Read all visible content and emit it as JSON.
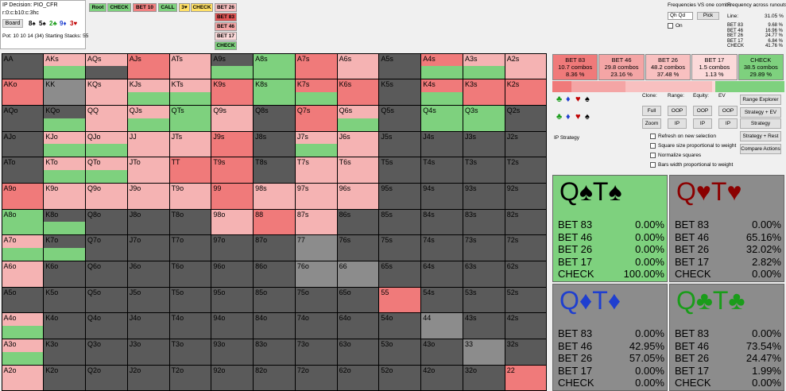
{
  "info": {
    "decision": "IP Decision: PIO_CFR",
    "line": "r:0:c:b10:c:3hc",
    "board_button": "Board",
    "board": [
      {
        "card": "8♠",
        "color": "#000000"
      },
      {
        "card": "5♠",
        "color": "#000000"
      },
      {
        "card": "2♣",
        "color": "#1a9c1a"
      },
      {
        "card": "9♦",
        "color": "#1f3fcf"
      },
      {
        "card": "3♥",
        "color": "#c00000"
      }
    ],
    "pot": "Pot: 10 10 14 (34) Starting Stacks: 55"
  },
  "tree": {
    "path": [
      {
        "label": "Root",
        "color": "#7ed17e"
      },
      {
        "label": "CHECK",
        "color": "#7ed17e"
      },
      {
        "label": "BET 10",
        "color": "#f08080"
      },
      {
        "label": "CALL",
        "color": "#7ed17e"
      },
      {
        "label": "3♥",
        "color": "#ffe066"
      },
      {
        "label": "CHECK",
        "color": "#ffe066"
      }
    ],
    "children": [
      {
        "label": "BET 26",
        "color": "#f8c0c0"
      },
      {
        "label": "BET 83",
        "color": "#e05555"
      },
      {
        "label": "BET 46",
        "color": "#f4a5a5"
      },
      {
        "label": "BET 17",
        "color": "#fbd9d9"
      },
      {
        "label": "CHECK",
        "color": "#7ed17e"
      }
    ]
  },
  "combo": {
    "title": "Frequencies VS one combo",
    "input": "Qh Qd",
    "button": "Pick",
    "checkbox": "On"
  },
  "runouts": {
    "title": "Frequency across runouts:",
    "line_label": "Line:",
    "line_value": "31.05 %",
    "rows": [
      [
        "BET 83",
        "9.68 %"
      ],
      [
        "BET 46",
        "16.96 %"
      ],
      [
        "BET 26",
        "24.77 %"
      ],
      [
        "BET 17",
        "6.84 %"
      ],
      [
        "CHECK",
        "41.76 %"
      ]
    ]
  },
  "grid": {
    "palette": {
      "D": "#5a5a5a",
      "L": "#8c8c8c",
      "R": "#f07a7a",
      "P": "#f5b3b3",
      "G": "#7ed17e"
    },
    "rows": [
      [
        "AA",
        "AKs",
        "AQs",
        "AJs",
        "ATs",
        "A9s",
        "A8s",
        "A7s",
        "A6s",
        "A5s",
        "A4s",
        "A3s",
        "A2s"
      ],
      [
        "AKo",
        "KK",
        "KQs",
        "KJs",
        "KTs",
        "K9s",
        "K8s",
        "K7s",
        "K6s",
        "K5s",
        "K4s",
        "K3s",
        "K2s"
      ],
      [
        "AQo",
        "KQo",
        "QQ",
        "QJs",
        "QTs",
        "Q9s",
        "Q8s",
        "Q7s",
        "Q6s",
        "Q5s",
        "Q4s",
        "Q3s",
        "Q2s"
      ],
      [
        "AJo",
        "KJo",
        "QJo",
        "JJ",
        "JTs",
        "J9s",
        "J8s",
        "J7s",
        "J6s",
        "J5s",
        "J4s",
        "J3s",
        "J2s"
      ],
      [
        "ATo",
        "KTo",
        "QTo",
        "JTo",
        "TT",
        "T9s",
        "T8s",
        "T7s",
        "T6s",
        "T5s",
        "T4s",
        "T3s",
        "T2s"
      ],
      [
        "A9o",
        "K9o",
        "Q9o",
        "J9o",
        "T9o",
        "99",
        "98s",
        "97s",
        "96s",
        "95s",
        "94s",
        "93s",
        "92s"
      ],
      [
        "A8o",
        "K8o",
        "Q8o",
        "J8o",
        "T8o",
        "98o",
        "88",
        "87s",
        "86s",
        "85s",
        "84s",
        "83s",
        "82s"
      ],
      [
        "A7o",
        "K7o",
        "Q7o",
        "J7o",
        "T7o",
        "97o",
        "87o",
        "77",
        "76s",
        "75s",
        "74s",
        "73s",
        "72s"
      ],
      [
        "A6o",
        "K6o",
        "Q6o",
        "J6o",
        "T6o",
        "96o",
        "86o",
        "76o",
        "66",
        "65s",
        "64s",
        "63s",
        "62s"
      ],
      [
        "A5o",
        "K5o",
        "Q5o",
        "J5o",
        "T5o",
        "95o",
        "85o",
        "75o",
        "65o",
        "55",
        "54s",
        "53s",
        "52s"
      ],
      [
        "A4o",
        "K4o",
        "Q4o",
        "J4o",
        "T4o",
        "94o",
        "84o",
        "74o",
        "64o",
        "54o",
        "44",
        "43s",
        "42s"
      ],
      [
        "A3o",
        "K3o",
        "Q3o",
        "J3o",
        "T3o",
        "93o",
        "83o",
        "73o",
        "63o",
        "53o",
        "43o",
        "33",
        "32s"
      ],
      [
        "A2o",
        "K2o",
        "Q2o",
        "J2o",
        "T2o",
        "92o",
        "82o",
        "72o",
        "62o",
        "52o",
        "42o",
        "32o",
        "22"
      ]
    ],
    "fills": [
      [
        "D",
        "PG",
        "PD",
        "R",
        "P",
        "DG",
        "G",
        "R",
        "P",
        "D",
        "RG",
        "PG",
        "P"
      ],
      [
        "R",
        "L",
        "P",
        "PG",
        "PG",
        "R",
        "G",
        "RG",
        "R",
        "D",
        "RG",
        "R",
        "R"
      ],
      [
        "D",
        "DG",
        "P",
        "PG",
        "G",
        "P",
        "D",
        "R",
        "PG",
        "D",
        "G",
        "G",
        "D"
      ],
      [
        "D",
        "PG",
        "PG",
        "P",
        "P",
        "R",
        "D",
        "PG",
        "P",
        "D",
        "D",
        "D",
        "D"
      ],
      [
        "D",
        "PG",
        "PG",
        "P",
        "R",
        "R",
        "D",
        "P",
        "P",
        "D",
        "D",
        "D",
        "D"
      ],
      [
        "R",
        "P",
        "P",
        "P",
        "P",
        "R",
        "P",
        "P",
        "P",
        "D",
        "D",
        "D",
        "D"
      ],
      [
        "G",
        "DG",
        "D",
        "D",
        "D",
        "P",
        "R",
        "P",
        "D",
        "D",
        "D",
        "D",
        "D"
      ],
      [
        "PG",
        "DG",
        "D",
        "D",
        "D",
        "D",
        "D",
        "L",
        "D",
        "D",
        "D",
        "D",
        "D"
      ],
      [
        "P",
        "D",
        "D",
        "D",
        "D",
        "D",
        "D",
        "L",
        "L",
        "D",
        "D",
        "D",
        "D"
      ],
      [
        "D",
        "D",
        "D",
        "D",
        "D",
        "D",
        "D",
        "D",
        "D",
        "R",
        "D",
        "D",
        "D"
      ],
      [
        "PG",
        "D",
        "D",
        "D",
        "D",
        "D",
        "D",
        "D",
        "D",
        "D",
        "L",
        "D",
        "D"
      ],
      [
        "PG",
        "D",
        "D",
        "D",
        "D",
        "D",
        "D",
        "D",
        "D",
        "D",
        "D",
        "L",
        "D"
      ],
      [
        "P",
        "D",
        "D",
        "D",
        "D",
        "D",
        "D",
        "D",
        "D",
        "D",
        "D",
        "D",
        "R"
      ]
    ]
  },
  "actions": [
    {
      "name": "BET 83",
      "combos": "10.7 combos",
      "value": 8.36,
      "value_label": "8.36 %",
      "color": "#f07a7a"
    },
    {
      "name": "BET 46",
      "combos": "29.8 combos",
      "value": 23.16,
      "value_label": "23.16 %",
      "color": "#f4a5a5"
    },
    {
      "name": "BET 26",
      "combos": "48.2 combos",
      "value": 37.48,
      "value_label": "37.48 %",
      "color": "#f8c0c0"
    },
    {
      "name": "BET 17",
      "combos": "1.5 combos",
      "value": 1.13,
      "value_label": "1.13 %",
      "color": "#fbd9d9"
    },
    {
      "name": "CHECK",
      "combos": "38.5 combos",
      "value": 29.89,
      "value_label": "29.89 %",
      "color": "#7ed17e"
    }
  ],
  "controls": {
    "suits": [
      {
        "s": "♣",
        "color": "#1a9c1a"
      },
      {
        "s": "♦",
        "color": "#1f3fcf"
      },
      {
        "s": "♥",
        "color": "#c00000"
      },
      {
        "s": "♠",
        "color": "#000000"
      }
    ],
    "headers": [
      "Clone:",
      "Range:",
      "Equity:",
      "EV"
    ],
    "row1": [
      "Full",
      "OOP",
      "OOP",
      "OOP"
    ],
    "row2": [
      "Zoom",
      "IP",
      "IP",
      "IP"
    ],
    "side": [
      "Range Explorer",
      "Strategy + EV",
      "Strategy",
      "Strategy + Rest",
      "Compare Actions"
    ],
    "mode": "IP Strategy",
    "checks": [
      "Refresh on new selection",
      "Square size proportional to weight",
      "Normalize squares",
      "Bars width proportional to weight"
    ]
  },
  "combos": [
    {
      "title": "Q♠T♠",
      "color": "#000000",
      "background": "#7ed17e",
      "rows": [
        [
          "BET 83",
          "0.00%"
        ],
        [
          "BET 46",
          "0.00%"
        ],
        [
          "BET 26",
          "0.00%"
        ],
        [
          "BET 17",
          "0.00%"
        ],
        [
          "CHECK",
          "100.00%"
        ]
      ]
    },
    {
      "title": "Q♥T♥",
      "color": "#8b0000",
      "background": "#8c8c8c",
      "rows": [
        [
          "BET 83",
          "0.00%"
        ],
        [
          "BET 46",
          "65.16%"
        ],
        [
          "BET 26",
          "32.02%"
        ],
        [
          "BET 17",
          "2.82%"
        ],
        [
          "CHECK",
          "0.00%"
        ]
      ]
    },
    {
      "title": "Q♦T♦",
      "color": "#1f3fcf",
      "background": "#8c8c8c",
      "rows": [
        [
          "BET 83",
          "0.00%"
        ],
        [
          "BET 46",
          "42.95%"
        ],
        [
          "BET 26",
          "57.05%"
        ],
        [
          "BET 17",
          "0.00%"
        ],
        [
          "CHECK",
          "0.00%"
        ]
      ]
    },
    {
      "title": "Q♣T♣",
      "color": "#1a9c1a",
      "background": "#8c8c8c",
      "rows": [
        [
          "BET 83",
          "0.00%"
        ],
        [
          "BET 46",
          "73.54%"
        ],
        [
          "BET 26",
          "24.47%"
        ],
        [
          "BET 17",
          "1.99%"
        ],
        [
          "CHECK",
          "0.00%"
        ]
      ]
    }
  ]
}
